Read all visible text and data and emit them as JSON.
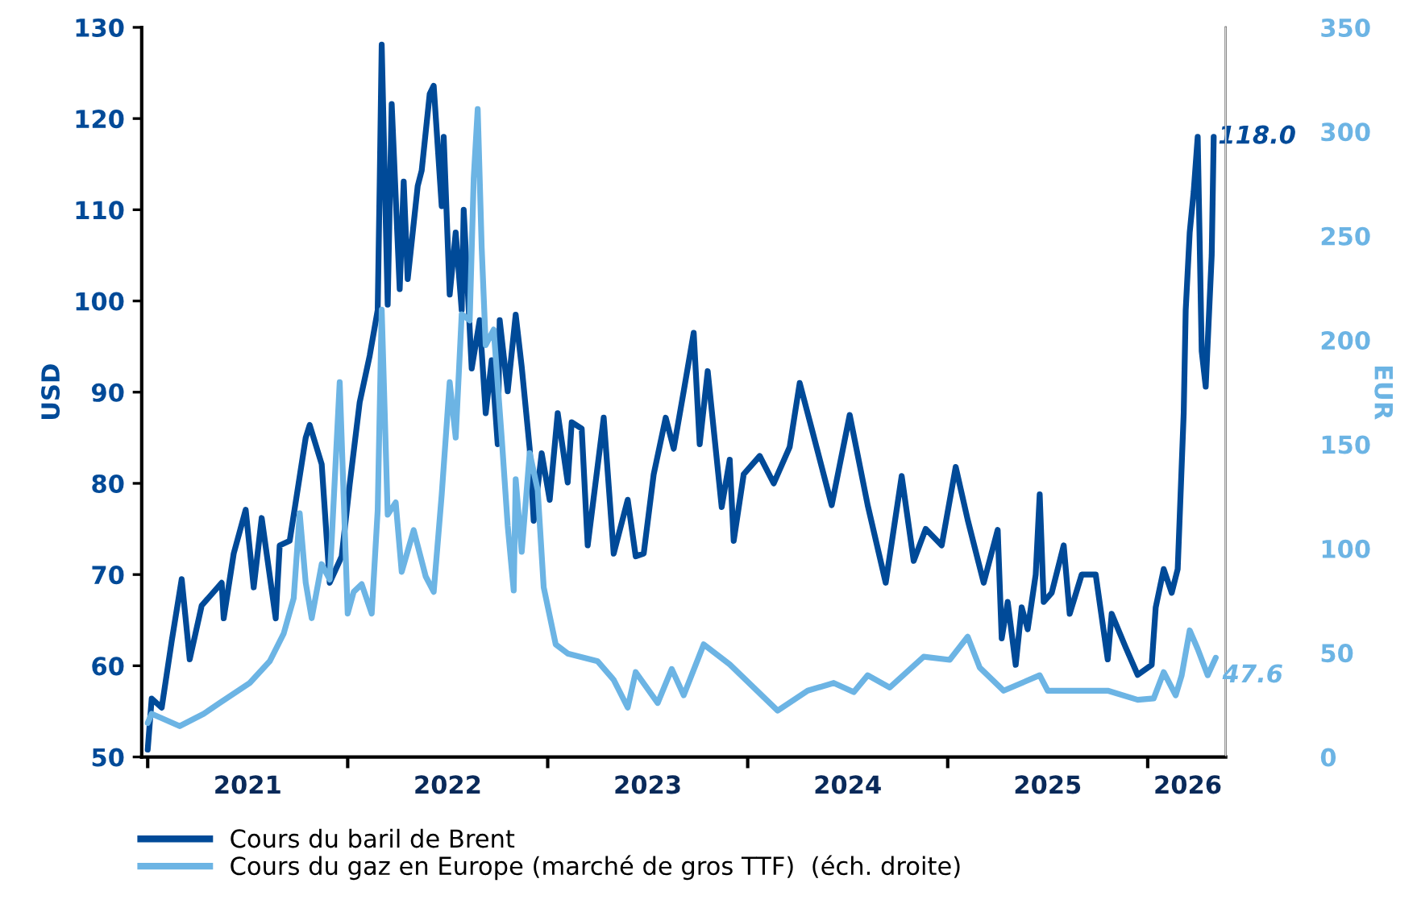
{
  "chart_data": {
    "type": "line",
    "xlim": [
      2020.97,
      2026.39
    ],
    "xticks": [
      {
        "value": 2021,
        "label": null
      },
      {
        "value": 2021.5,
        "label": "2021"
      },
      {
        "value": 2022,
        "label": null
      },
      {
        "value": 2022.5,
        "label": "2022"
      },
      {
        "value": 2023,
        "label": null
      },
      {
        "value": 2023.5,
        "label": "2023"
      },
      {
        "value": 2024,
        "label": null
      },
      {
        "value": 2024.5,
        "label": "2024"
      },
      {
        "value": 2025,
        "label": null
      },
      {
        "value": 2025.5,
        "label": "2025"
      },
      {
        "value": 2026,
        "label": null
      },
      {
        "value": 2026.2,
        "label": "2026"
      }
    ],
    "ylim": [
      50,
      130
    ],
    "yticks": [
      50,
      60,
      70,
      80,
      90,
      100,
      110,
      120,
      130
    ],
    "y2lim": [
      0,
      350
    ],
    "y2ticks": [
      0,
      50,
      100,
      150,
      200,
      250,
      300,
      350
    ],
    "ylabel": "USD",
    "y2label": "EUR",
    "legend": "bottom",
    "grid": false,
    "marker": "none",
    "line_style": "solid",
    "annotations": [
      {
        "text": "118.0",
        "x": 2026.33,
        "y": 118
      },
      "47.6"
    ],
    "series": [
      {
        "name": "Cours du baril de Brent",
        "color": "#004a98",
        "axis": "y",
        "x": [
          2021.0,
          2021.02,
          2021.07,
          2021.12,
          2021.17,
          2021.21,
          2021.27,
          2021.37,
          2021.38,
          2021.43,
          2021.49,
          2021.53,
          2021.57,
          2021.64,
          2021.66,
          2021.71,
          2021.79,
          2021.81,
          2021.87,
          2021.91,
          2021.97,
          2022.01,
          2022.06,
          2022.11,
          2022.15,
          2022.16,
          2022.17,
          2022.2,
          2022.22,
          2022.26,
          2022.28,
          2022.3,
          2022.35,
          2022.37,
          2022.41,
          2022.43,
          2022.47,
          2022.48,
          2022.51,
          2022.54,
          2022.57,
          2022.58,
          2022.62,
          2022.66,
          2022.69,
          2022.72,
          2022.75,
          2022.76,
          2022.8,
          2022.84,
          2022.87,
          2022.91,
          2022.93,
          2022.97,
          2023.01,
          2023.05,
          2023.1,
          2023.12,
          2023.17,
          2023.2,
          2023.28,
          2023.33,
          2023.4,
          2023.44,
          2023.48,
          2023.53,
          2023.59,
          2023.63,
          2023.68,
          2023.73,
          2023.76,
          2023.8,
          2023.87,
          2023.91,
          2023.93,
          2023.98,
          2024.06,
          2024.13,
          2024.21,
          2024.26,
          2024.32,
          2024.42,
          2024.51,
          2024.6,
          2024.69,
          2024.77,
          2024.83,
          2024.89,
          2024.97,
          2025.04,
          2025.1,
          2025.18,
          2025.25,
          2025.27,
          2025.3,
          2025.34,
          2025.37,
          2025.4,
          2025.44,
          2025.46,
          2025.48,
          2025.52,
          2025.58,
          2025.61,
          2025.67,
          2025.74,
          2025.8,
          2025.82,
          2025.89,
          2025.95,
          2026.02,
          2026.04,
          2026.08,
          2026.12,
          2026.15,
          2026.18,
          2026.19,
          2026.21,
          2026.23,
          2026.25,
          2026.27,
          2026.29,
          2026.32,
          2026.33
        ],
        "values": [
          50.8,
          56.4,
          55.4,
          62.7,
          69.5,
          60.7,
          66.6,
          69.1,
          65.2,
          72.3,
          77.1,
          68.6,
          76.2,
          65.2,
          73.2,
          73.7,
          85,
          86.4,
          82.1,
          69.1,
          72,
          79.9,
          88.9,
          94,
          99,
          112.9,
          128.1,
          99.6,
          121.6,
          101.3,
          113.1,
          102.4,
          112.6,
          114.3,
          122.7,
          123.6,
          110.4,
          118,
          100.7,
          107.5,
          99,
          110,
          92.6,
          97.9,
          87.7,
          93.5,
          84.3,
          97.9,
          90.1,
          98.5,
          92.8,
          83.8,
          75.9,
          83.3,
          78.2,
          87.7,
          80.1,
          86.7,
          86,
          73.2,
          87.2,
          72.3,
          78.2,
          72,
          72.3,
          81,
          87.2,
          83.8,
          90.1,
          96.5,
          84.3,
          92.3,
          77.4,
          82.6,
          73.7,
          81,
          83,
          80,
          84,
          91,
          86,
          77.6,
          87.5,
          77.6,
          69.1,
          80.8,
          71.5,
          75,
          73.2,
          81.8,
          76,
          69.1,
          74.9,
          63,
          67,
          60.1,
          66.4,
          64,
          70,
          78.8,
          67,
          68,
          73.2,
          65.7,
          70,
          70,
          60.7,
          65.7,
          62,
          59,
          60.1,
          66.4,
          70.6,
          68,
          70.6,
          87.7,
          99,
          107.5,
          112,
          118,
          94.5,
          90.6,
          105,
          118
        ]
      },
      {
        "name": "Cours du gaz en Europe (marché de gros TTF)  (éch. droite)",
        "color": "#6cb4e4",
        "axis": "y2",
        "x": [
          2021.0,
          2021.02,
          2021.16,
          2021.28,
          2021.36,
          2021.51,
          2021.61,
          2021.68,
          2021.73,
          2021.76,
          2021.79,
          2021.82,
          2021.87,
          2021.91,
          2021.96,
          2022.0,
          2022.03,
          2022.07,
          2022.12,
          2022.15,
          2022.17,
          2022.2,
          2022.24,
          2022.27,
          2022.33,
          2022.39,
          2022.43,
          2022.47,
          2022.51,
          2022.54,
          2022.57,
          2022.61,
          2022.63,
          2022.65,
          2022.67,
          2022.69,
          2022.73,
          2022.77,
          2022.8,
          2022.83,
          2022.84,
          2022.87,
          2022.91,
          2022.95,
          2022.98,
          2023.04,
          2023.1,
          2023.25,
          2023.33,
          2023.4,
          2023.44,
          2023.55,
          2023.62,
          2023.68,
          2023.78,
          2023.91,
          2024.15,
          2024.3,
          2024.43,
          2024.53,
          2024.6,
          2024.71,
          2024.88,
          2025.01,
          2025.1,
          2025.16,
          2025.28,
          2025.46,
          2025.5,
          2025.8,
          2025.95,
          2026.03,
          2026.08,
          2026.14,
          2026.17,
          2026.21,
          2026.25,
          2026.3,
          2026.34
        ],
        "values": [
          16.3,
          20.7,
          14.8,
          20.7,
          25.9,
          35.5,
          45.9,
          59.2,
          76.2,
          116.9,
          83.6,
          66.6,
          92.5,
          85.1,
          179.8,
          68.8,
          79.2,
          82.9,
          68.8,
          118.4,
          214.6,
          116.2,
          122.1,
          88.8,
          108.8,
          86.6,
          79.2,
          125.8,
          179.8,
          153.2,
          212.4,
          209.4,
          277.5,
          310.8,
          244.2,
          197.6,
          205,
          153.2,
          111,
          79.9,
          133.2,
          98.4,
          145.8,
          128,
          81.4,
          54,
          49.6,
          45.9,
          37,
          23.7,
          40.7,
          25.9,
          42.2,
          29.6,
          54,
          44.4,
          22.2,
          31.8,
          35.5,
          31.1,
          39.2,
          33.3,
          48.1,
          46.6,
          57.7,
          42.9,
          31.8,
          39.2,
          31.8,
          31.8,
          27.4,
          28.1,
          40.7,
          29.6,
          39.2,
          60.7,
          51.8,
          39.2,
          47.6
        ]
      }
    ]
  }
}
